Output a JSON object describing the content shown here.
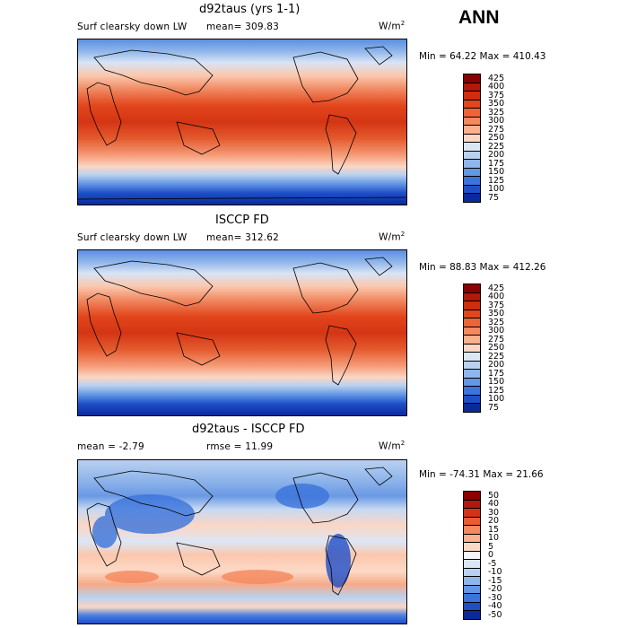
{
  "season": "ANN",
  "panels": [
    {
      "title": "d92taus (yrs 1-1)",
      "left_label": "Surf clearsky down LW",
      "stat_label": "mean=",
      "stat_value": "309.83",
      "unit": "W/m",
      "unit_exp": "2",
      "min_label": "Min =",
      "min_value": "64.22",
      "max_label": "Max =",
      "max_value": "410.43",
      "colorbar": {
        "levels": [
          "425",
          "400",
          "375",
          "350",
          "325",
          "300",
          "275",
          "250",
          "225",
          "200",
          "175",
          "150",
          "125",
          "100",
          "75"
        ],
        "colors": [
          "#8b0000",
          "#b2180c",
          "#cf2d0f",
          "#e2461c",
          "#ee6436",
          "#f6885d",
          "#fbb08e",
          "#fbd6c4",
          "#dbe6f5",
          "#b9d1f0",
          "#8fb5ea",
          "#6496e4",
          "#3a74dc",
          "#1f4fc8",
          "#0a2a9a"
        ]
      }
    },
    {
      "title": "ISCCP FD",
      "left_label": "Surf clearsky down LW",
      "stat_label": "mean=",
      "stat_value": "312.62",
      "unit": "W/m",
      "unit_exp": "2",
      "min_label": "Min =",
      "min_value": "88.83",
      "max_label": "Max =",
      "max_value": "412.26",
      "colorbar": {
        "levels": [
          "425",
          "400",
          "375",
          "350",
          "325",
          "300",
          "275",
          "250",
          "225",
          "200",
          "175",
          "150",
          "125",
          "100",
          "75"
        ],
        "colors": [
          "#8b0000",
          "#b2180c",
          "#cf2d0f",
          "#e2461c",
          "#ee6436",
          "#f6885d",
          "#fbb08e",
          "#fbd6c4",
          "#dbe6f5",
          "#b9d1f0",
          "#8fb5ea",
          "#6496e4",
          "#3a74dc",
          "#1f4fc8",
          "#0a2a9a"
        ]
      }
    },
    {
      "title": "d92taus - ISCCP FD",
      "left_label": "mean =",
      "left_value": "-2.79",
      "stat_label": "rmse =",
      "stat_value": "11.99",
      "unit": "W/m",
      "unit_exp": "2",
      "min_label": "Min =",
      "min_value": "-74.31",
      "max_label": "Max =",
      "max_value": "21.66",
      "colorbar": {
        "levels": [
          "50",
          "40",
          "30",
          "20",
          "15",
          "10",
          "5",
          "0",
          "-5",
          "-10",
          "-15",
          "-20",
          "-30",
          "-40",
          "-50"
        ],
        "colors": [
          "#8b0000",
          "#b2180c",
          "#d23317",
          "#ec5a33",
          "#f6885d",
          "#fbb08e",
          "#fcd9c6",
          "#f4f6fb",
          "#dbe6f5",
          "#b9d1f0",
          "#8fb5ea",
          "#6496e4",
          "#3a74dc",
          "#1f4fc8",
          "#0a2a9a"
        ]
      }
    }
  ]
}
